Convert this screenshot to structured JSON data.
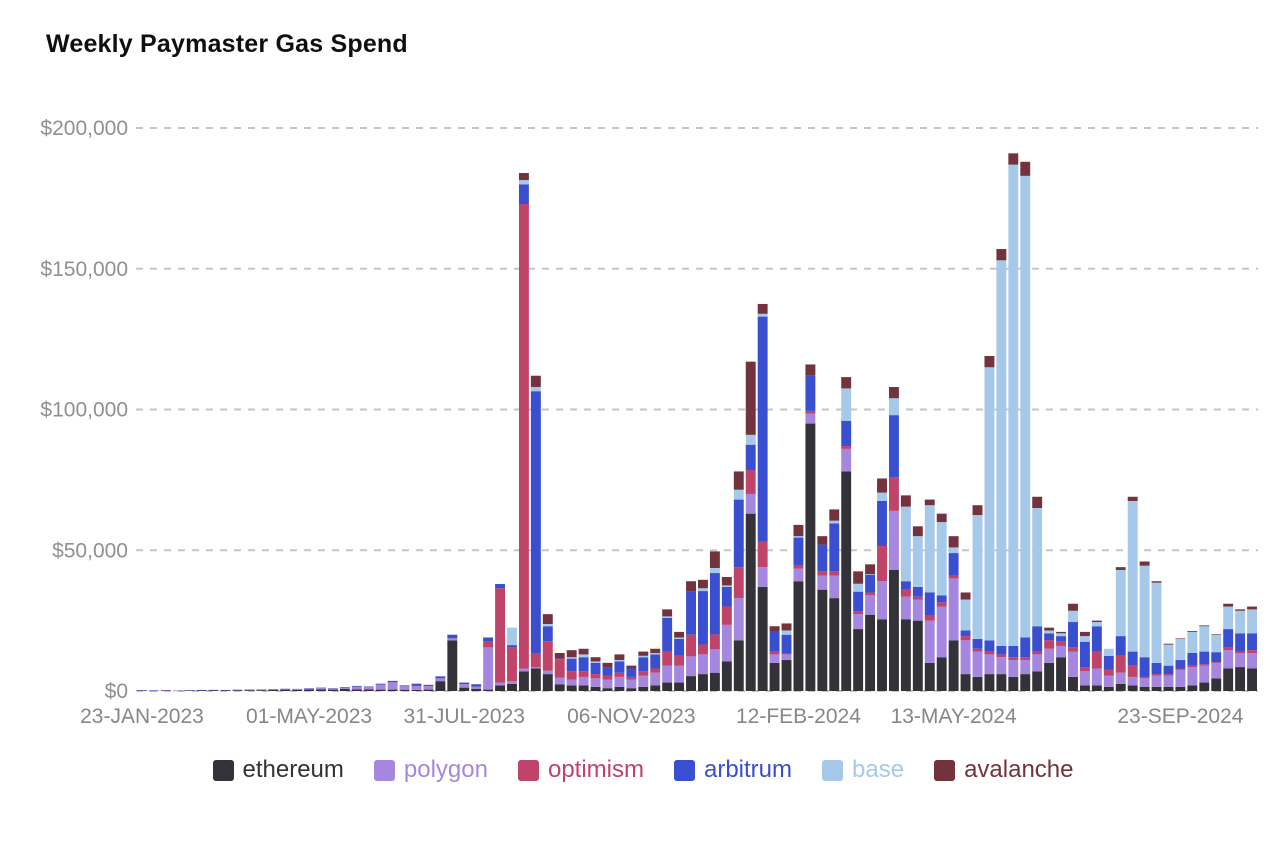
{
  "title": "Weekly Paymaster Gas Spend",
  "legend": [
    {
      "label": "ethereum",
      "color": "#323238",
      "text_color": "#323238"
    },
    {
      "label": "polygon",
      "color": "#a687e0",
      "text_color": "#a687e0"
    },
    {
      "label": "optimism",
      "color": "#c04369",
      "text_color": "#c04369"
    },
    {
      "label": "arbitrum",
      "color": "#3a4fd0",
      "text_color": "#3a4fd0"
    },
    {
      "label": "base",
      "color": "#a7c9e9",
      "text_color": "#a7c9e9"
    },
    {
      "label": "avalanche",
      "color": "#72333c",
      "text_color": "#72333c"
    }
  ],
  "chart_data": {
    "type": "bar",
    "stacked": true,
    "title": "Weekly Paymaster Gas Spend",
    "unit": "USD per week",
    "n_weeks": 94,
    "ylim": [
      0,
      200000
    ],
    "grid": "horizontal dashed",
    "legend_position": "bottom",
    "y_ticks": [
      {
        "value": 0,
        "label": "$0"
      },
      {
        "value": 50000,
        "label": "$50,000"
      },
      {
        "value": 100000,
        "label": "$100,000"
      },
      {
        "value": 150000,
        "label": "$150,000"
      },
      {
        "value": 200000,
        "label": "$200,000"
      }
    ],
    "x_tick_labels": [
      "23-JAN-2023",
      "01-MAY-2023",
      "31-JUL-2023",
      "06-NOV-2023",
      "12-FEB-2024",
      "13-MAY-2024",
      "23-SEP-2024"
    ],
    "x_tick_indices": [
      0,
      14,
      27,
      41,
      55,
      68,
      87
    ],
    "series": [
      {
        "name": "ethereum",
        "color": "#323238",
        "values": [
          150,
          100,
          150,
          100,
          150,
          200,
          250,
          200,
          250,
          300,
          300,
          350,
          500,
          400,
          550,
          600,
          500,
          800,
          600,
          550,
          500,
          500,
          450,
          400,
          500,
          3500,
          18000,
          1200,
          800,
          500,
          2000,
          2500,
          7000,
          8000,
          6000,
          2400,
          2000,
          2000,
          1500,
          1000,
          1500,
          1000,
          1500,
          2000,
          3000,
          3000,
          5300,
          6000,
          6500,
          10500,
          18000,
          63000,
          37000,
          10000,
          11000,
          39000,
          95000,
          36000,
          33000,
          78000,
          22000,
          27000,
          25500,
          43000,
          25500,
          25000,
          10000,
          12000,
          18000,
          6000,
          5000,
          6000,
          6000,
          5000,
          6000,
          7000,
          10000,
          12000,
          5000,
          2000,
          2000,
          1500,
          2500,
          2000,
          1500,
          1500,
          1500,
          1500,
          2000,
          3000,
          4500,
          8000,
          8500,
          8000
        ]
      },
      {
        "name": "polygon",
        "color": "#a687e0",
        "values": [
          100,
          50,
          100,
          100,
          100,
          100,
          100,
          100,
          150,
          150,
          150,
          200,
          200,
          250,
          300,
          400,
          350,
          400,
          900,
          800,
          1800,
          2600,
          1300,
          1400,
          1300,
          1000,
          700,
          1200,
          800,
          15000,
          1000,
          1000,
          1000,
          500,
          1200,
          2400,
          2000,
          3000,
          3000,
          3000,
          3500,
          3000,
          4000,
          4500,
          6000,
          6000,
          7000,
          7000,
          8300,
          13000,
          15000,
          7000,
          7000,
          3000,
          2000,
          4500,
          3500,
          5000,
          8000,
          8000,
          5300,
          7000,
          13500,
          21000,
          8000,
          7500,
          15000,
          18000,
          22000,
          12000,
          9000,
          7000,
          6000,
          6000,
          5000,
          6000,
          5000,
          4000,
          9000,
          5000,
          6000,
          4000,
          4000,
          3000,
          3000,
          4000,
          4000,
          6000,
          6500,
          6000,
          5500,
          6500,
          5000,
          5500
        ]
      },
      {
        "name": "optimism",
        "color": "#c04369",
        "values": [
          0,
          0,
          0,
          0,
          0,
          0,
          0,
          0,
          0,
          0,
          0,
          0,
          0,
          0,
          0,
          0,
          0,
          0,
          0,
          0,
          0,
          0,
          0,
          0,
          0,
          0,
          0,
          0,
          0,
          2000,
          33500,
          12000,
          165000,
          5000,
          10500,
          6500,
          3000,
          2000,
          1500,
          1500,
          1500,
          1000,
          1500,
          1500,
          5000,
          3500,
          7700,
          3500,
          5300,
          6500,
          11000,
          8500,
          9000,
          1000,
          500,
          1000,
          1000,
          1500,
          1500,
          1000,
          1000,
          1000,
          12500,
          12000,
          2500,
          1000,
          2000,
          1500,
          1000,
          1500,
          1000,
          1000,
          1000,
          1000,
          1000,
          1000,
          3000,
          1500,
          1500,
          1500,
          6000,
          2000,
          6000,
          4000,
          500,
          500,
          500,
          500,
          500,
          500,
          300,
          1000,
          500,
          1000
        ]
      },
      {
        "name": "arbitrum",
        "color": "#3a4fd0",
        "values": [
          50,
          50,
          50,
          0,
          50,
          50,
          50,
          50,
          50,
          50,
          100,
          100,
          100,
          100,
          150,
          200,
          150,
          200,
          300,
          250,
          300,
          500,
          250,
          800,
          400,
          700,
          1300,
          600,
          800,
          1500,
          1500,
          800,
          7000,
          93000,
          5300,
          200,
          4500,
          5000,
          4000,
          3000,
          4000,
          3000,
          5000,
          5000,
          12000,
          6000,
          15500,
          19000,
          21800,
          7000,
          24000,
          9000,
          80000,
          7000,
          6500,
          10000,
          12500,
          9500,
          17000,
          9000,
          7000,
          6300,
          16000,
          22000,
          3000,
          3500,
          8000,
          2500,
          8000,
          2000,
          3500,
          4000,
          3000,
          4000,
          7000,
          9000,
          2500,
          2000,
          9000,
          9000,
          9000,
          5000,
          7000,
          5000,
          7000,
          4000,
          3000,
          3000,
          4500,
          4500,
          3500,
          6500,
          6500,
          6000
        ]
      },
      {
        "name": "base",
        "color": "#a7c9e9",
        "values": [
          0,
          0,
          0,
          0,
          0,
          0,
          0,
          0,
          0,
          0,
          0,
          0,
          0,
          0,
          0,
          0,
          0,
          0,
          0,
          0,
          0,
          0,
          0,
          0,
          0,
          0,
          0,
          0,
          0,
          0,
          0,
          6200,
          1500,
          1500,
          800,
          0,
          500,
          1000,
          500,
          0,
          500,
          0,
          500,
          500,
          500,
          500,
          0,
          1000,
          1800,
          500,
          3500,
          3500,
          1000,
          0,
          1500,
          500,
          0,
          0,
          1000,
          11500,
          2800,
          200,
          3000,
          6000,
          26500,
          18000,
          31000,
          26000,
          2000,
          11000,
          44000,
          97000,
          137000,
          171000,
          164000,
          42000,
          1000,
          1000,
          4000,
          2000,
          1500,
          2500,
          23500,
          53500,
          32500,
          28500,
          7500,
          7500,
          7500,
          9000,
          6200,
          8000,
          8000,
          8500
        ]
      },
      {
        "name": "avalanche",
        "color": "#72333c",
        "values": [
          0,
          0,
          0,
          0,
          0,
          0,
          0,
          0,
          0,
          0,
          0,
          0,
          0,
          0,
          0,
          0,
          0,
          0,
          0,
          0,
          0,
          0,
          0,
          0,
          0,
          0,
          0,
          0,
          0,
          0,
          0,
          0,
          2500,
          4000,
          3500,
          2000,
          2500,
          2000,
          1500,
          1500,
          2000,
          1000,
          1500,
          1500,
          2500,
          2000,
          3500,
          3000,
          5900,
          3000,
          6500,
          26000,
          3500,
          2000,
          2500,
          4000,
          4000,
          3000,
          4000,
          4000,
          4400,
          3500,
          5000,
          4000,
          4000,
          3500,
          2000,
          3000,
          4000,
          2500,
          3500,
          4000,
          4000,
          4000,
          5000,
          4000,
          1000,
          500,
          2500,
          1500,
          500,
          0,
          1000,
          1500,
          1500,
          500,
          300,
          200,
          300,
          300,
          200,
          1000,
          500,
          1000
        ]
      }
    ]
  }
}
